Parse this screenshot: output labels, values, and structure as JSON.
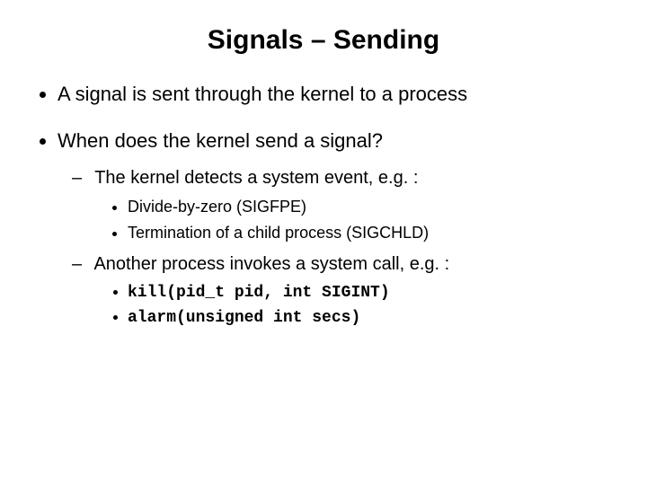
{
  "title": "Signals – Sending",
  "bullets": {
    "b1": "A signal is sent through the kernel to a process",
    "b2": "When does the kernel send a signal?",
    "d1": "The kernel detects a system event, e.g. :",
    "d1s1": "Divide-by-zero (SIGFPE)",
    "d1s2": "Termination of a child process (SIGCHLD)",
    "d2": "Another process invokes a system call, e.g. :",
    "d2s1": "kill(pid_t pid, int SIGINT)",
    "d2s2": "alarm(unsigned int secs)"
  }
}
